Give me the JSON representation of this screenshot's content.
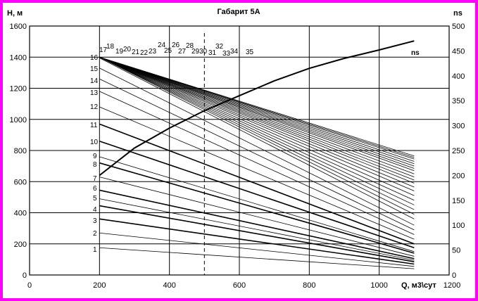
{
  "chart_data": {
    "type": "line",
    "title": "Габарит 5А",
    "xlabel": "Q, м3\\сут",
    "ylabel_left": "H, м",
    "ylabel_right": "ns",
    "xlim": [
      0,
      1200
    ],
    "ylim_left": [
      0,
      1600
    ],
    "ylim_right": [
      0,
      500
    ],
    "x_ticks": [
      0,
      200,
      400,
      600,
      800,
      1000,
      1200
    ],
    "y_left_ticks": [
      0,
      200,
      400,
      600,
      800,
      1000,
      1200,
      1400,
      1600
    ],
    "y_right_ticks": [
      0,
      50,
      100,
      150,
      200,
      250,
      300,
      350,
      400,
      450,
      500
    ],
    "grid": true,
    "dashed_line_x": 500,
    "head_curves": {
      "x_range": [
        200,
        1100
      ],
      "series": [
        {
          "name": "1",
          "h_start": 175,
          "h_end": 40
        },
        {
          "name": "2",
          "h_start": 270,
          "h_end": 55
        },
        {
          "name": "3",
          "h_start": 360,
          "h_end": 70
        },
        {
          "name": "4",
          "h_start": 445,
          "h_end": 85
        },
        {
          "name": "5",
          "h_start": 490,
          "h_end": 95
        },
        {
          "name": "6",
          "h_start": 545,
          "h_end": 105
        },
        {
          "name": "7",
          "h_start": 630,
          "h_end": 120
        },
        {
          "name": "8",
          "h_start": 720,
          "h_end": 140
        },
        {
          "name": "9",
          "h_start": 760,
          "h_end": 150
        },
        {
          "name": "10",
          "h_start": 860,
          "h_end": 175
        },
        {
          "name": "11",
          "h_start": 970,
          "h_end": 200
        },
        {
          "name": "12",
          "h_start": 1080,
          "h_end": 230
        },
        {
          "name": "13",
          "h_start": 1180,
          "h_end": 260
        },
        {
          "name": "14",
          "h_start": 1260,
          "h_end": 290
        },
        {
          "name": "15",
          "h_start": 1330,
          "h_end": 320
        },
        {
          "name": "16",
          "h_start": 1395,
          "h_end": 360
        },
        {
          "name": "17",
          "h_start": 1400,
          "h_end": 390
        },
        {
          "name": "18",
          "h_start": 1400,
          "h_end": 420
        },
        {
          "name": "19",
          "h_start": 1400,
          "h_end": 450
        },
        {
          "name": "20",
          "h_start": 1400,
          "h_end": 480
        },
        {
          "name": "21",
          "h_start": 1400,
          "h_end": 510
        },
        {
          "name": "22",
          "h_start": 1400,
          "h_end": 540
        },
        {
          "name": "23",
          "h_start": 1400,
          "h_end": 565
        },
        {
          "name": "24",
          "h_start": 1400,
          "h_end": 590
        },
        {
          "name": "25",
          "h_start": 1400,
          "h_end": 610
        },
        {
          "name": "26",
          "h_start": 1400,
          "h_end": 630
        },
        {
          "name": "27",
          "h_start": 1400,
          "h_end": 650
        },
        {
          "name": "28",
          "h_start": 1400,
          "h_end": 670
        },
        {
          "name": "29",
          "h_start": 1400,
          "h_end": 685
        },
        {
          "name": "30",
          "h_start": 1400,
          "h_end": 700
        },
        {
          "name": "31",
          "h_start": 1400,
          "h_end": 715
        },
        {
          "name": "32",
          "h_start": 1400,
          "h_end": 730
        },
        {
          "name": "33",
          "h_start": 1400,
          "h_end": 745
        },
        {
          "name": "34",
          "h_start": 1400,
          "h_end": 755
        },
        {
          "name": "35",
          "h_start": 1400,
          "h_end": 765
        }
      ]
    },
    "ns_curve": {
      "name": "ns",
      "x": [
        200,
        300,
        400,
        500,
        600,
        700,
        800,
        900,
        1000,
        1100
      ],
      "y": [
        200,
        255,
        295,
        330,
        360,
        390,
        415,
        435,
        452,
        470
      ]
    }
  }
}
